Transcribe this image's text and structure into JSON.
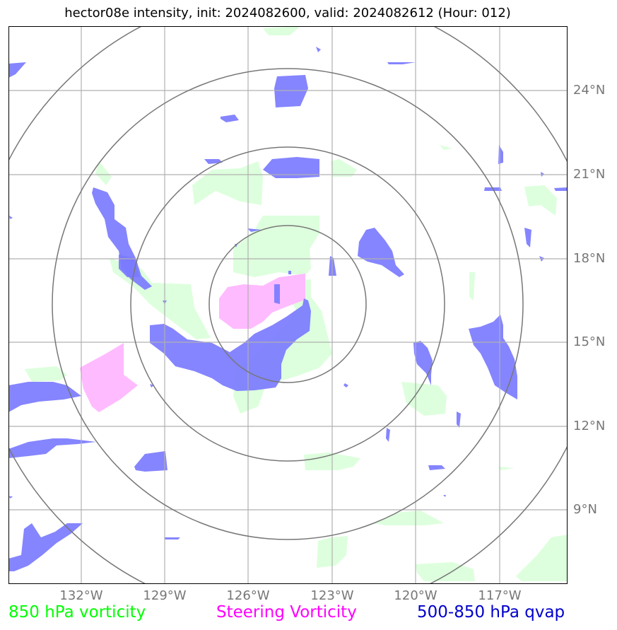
{
  "title": "hector08e intensity, init: 2024082600, valid: 2024082612 (Hour: 012)",
  "latitude_labels": [
    "24°N",
    "21°N",
    "18°N",
    "15°N",
    "12°N",
    "9°N"
  ],
  "longitude_labels": [
    "132°W",
    "129°W",
    "126°W",
    "123°W",
    "120°W",
    "117°W"
  ],
  "legend": [
    {
      "label": "850 hPa vorticity",
      "color": "#00ff00"
    },
    {
      "label": "Steering Vorticity",
      "color": "#ff00ff"
    },
    {
      "label": "500-850 hPa qvap",
      "color": "#0000cc"
    }
  ],
  "colors": {
    "vorticity_fill": "#ddffdd",
    "steering_fill": "#ffbbff",
    "qvap_fill": "#7b7bff",
    "gridline": "#b0b0b0",
    "range_ring": "#777777"
  }
}
